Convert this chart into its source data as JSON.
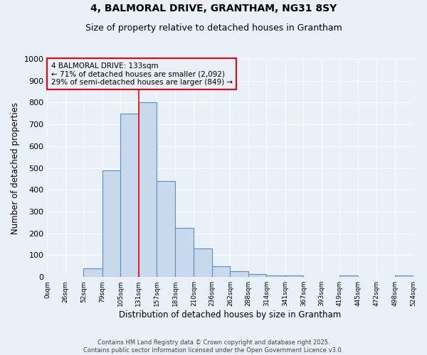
{
  "title1": "4, BALMORAL DRIVE, GRANTHAM, NG31 8SY",
  "title2": "Size of property relative to detached houses in Grantham",
  "xlabel": "Distribution of detached houses by size in Grantham",
  "ylabel": "Number of detached properties",
  "bar_left_edges": [
    0,
    26,
    52,
    79,
    105,
    131,
    157,
    183,
    210,
    236,
    262,
    288,
    314,
    341,
    367,
    393,
    419,
    445,
    472,
    498
  ],
  "bar_widths": [
    26,
    26,
    27,
    26,
    26,
    26,
    26,
    27,
    26,
    26,
    26,
    26,
    27,
    26,
    26,
    26,
    26,
    27,
    26,
    26
  ],
  "bar_heights": [
    0,
    0,
    40,
    490,
    750,
    800,
    440,
    225,
    130,
    50,
    28,
    15,
    8,
    8,
    0,
    0,
    6,
    0,
    0,
    6
  ],
  "xtick_labels": [
    "0sqm",
    "26sqm",
    "52sqm",
    "79sqm",
    "105sqm",
    "131sqm",
    "157sqm",
    "183sqm",
    "210sqm",
    "236sqm",
    "262sqm",
    "288sqm",
    "314sqm",
    "341sqm",
    "367sqm",
    "393sqm",
    "419sqm",
    "445sqm",
    "472sqm",
    "498sqm",
    "524sqm"
  ],
  "xtick_positions": [
    0,
    26,
    52,
    79,
    105,
    131,
    157,
    183,
    210,
    236,
    262,
    288,
    314,
    341,
    367,
    393,
    419,
    445,
    472,
    498,
    524
  ],
  "ylim": [
    0,
    1000
  ],
  "yticks": [
    0,
    100,
    200,
    300,
    400,
    500,
    600,
    700,
    800,
    900,
    1000
  ],
  "bar_color": "#c9d9ec",
  "bar_edge_color": "#5a8fc3",
  "red_line_x": 131,
  "annotation_line1": "4 BALMORAL DRIVE: 133sqm",
  "annotation_line2": "← 71% of detached houses are smaller (2,092)",
  "annotation_line3": "29% of semi-detached houses are larger (849) →",
  "bg_color": "#eaf0f8",
  "grid_color": "#ffffff",
  "footer_line1": "Contains HM Land Registry data © Crown copyright and database right 2025.",
  "footer_line2": "Contains public sector information licensed under the Open Government Licence v3.0.",
  "title1_fontsize": 10,
  "title2_fontsize": 9,
  "xlabel_fontsize": 8.5,
  "ylabel_fontsize": 8.5,
  "xtick_fontsize": 6.5,
  "ytick_fontsize": 8,
  "annot_fontsize": 7.5,
  "footer_fontsize": 6
}
